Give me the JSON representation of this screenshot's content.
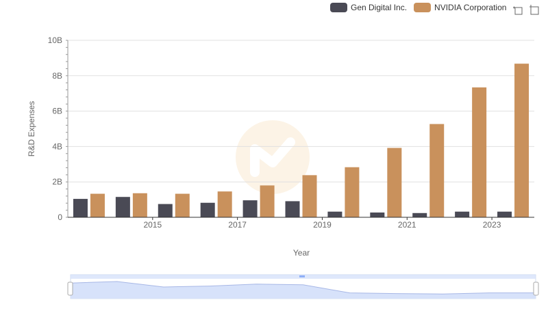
{
  "legend": {
    "items": [
      {
        "label": "Gen Digital Inc.",
        "color": "#4a4a55"
      },
      {
        "label": "NVIDIA Corporation",
        "color": "#c9915c"
      }
    ]
  },
  "toolbox": {
    "zoom_icon": "zoom-icon",
    "restore_icon": "restore-icon"
  },
  "chart_data": {
    "type": "bar",
    "title": "",
    "xlabel": "Year",
    "ylabel": "R&D Expenses",
    "ylim": [
      0,
      10000000000
    ],
    "yticks": [
      0,
      2000000000,
      4000000000,
      6000000000,
      8000000000,
      10000000000
    ],
    "ytick_labels": [
      "0",
      "2B",
      "4B",
      "6B",
      "8B",
      "10B"
    ],
    "categories": [
      "2014",
      "2015",
      "2016",
      "2017",
      "2018",
      "2019",
      "2020",
      "2021",
      "2022",
      "2023",
      "2024"
    ],
    "xtick_labels_shown": [
      "2015",
      "2017",
      "2019",
      "2021",
      "2023"
    ],
    "grid": true,
    "legend_position": "top-right",
    "series": [
      {
        "name": "Gen Digital Inc.",
        "color": "#4a4a55",
        "values": [
          1040000000,
          1150000000,
          750000000,
          820000000,
          960000000,
          910000000,
          320000000,
          270000000,
          240000000,
          320000000,
          320000000
        ]
      },
      {
        "name": "NVIDIA Corporation",
        "color": "#c9915c",
        "values": [
          1330000000,
          1360000000,
          1330000000,
          1460000000,
          1800000000,
          2380000000,
          2830000000,
          3920000000,
          5270000000,
          7340000000,
          8680000000
        ]
      }
    ],
    "datazoom": {
      "range_percent": [
        0,
        100
      ]
    }
  }
}
